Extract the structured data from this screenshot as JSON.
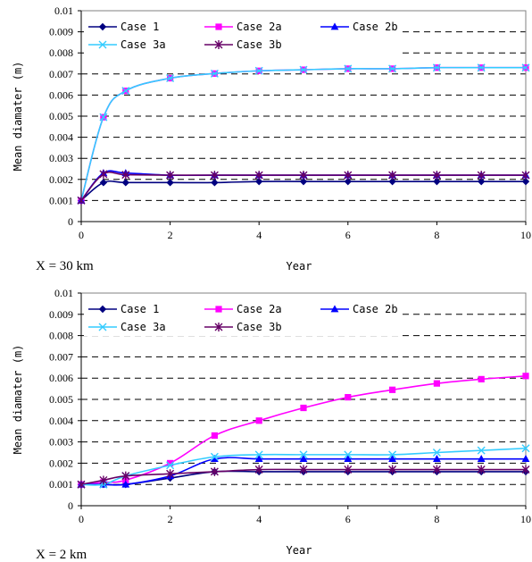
{
  "chart_data": [
    {
      "type": "line",
      "panel_label": "X = 30 km",
      "xlabel": "Year",
      "ylabel": "Mean diamater (m)",
      "xlim": [
        0,
        10
      ],
      "ylim": [
        0,
        0.01
      ],
      "xticks": [
        "0",
        "2",
        "4",
        "6",
        "8",
        "10"
      ],
      "yticks": [
        "0",
        "0.001",
        "0.002",
        "0.003",
        "0.004",
        "0.005",
        "0.006",
        "0.007",
        "0.008",
        "0.009",
        "0.01"
      ],
      "grid": "horizontal dashed",
      "legend_position": "top-left",
      "x": [
        0,
        0.5,
        1,
        2,
        3,
        4,
        5,
        6,
        7,
        8,
        9,
        10
      ],
      "series": [
        {
          "name": "Case 1",
          "color": "#000080",
          "marker": "diamond",
          "values": [
            0.001,
            0.00185,
            0.00185,
            0.00185,
            0.00185,
            0.0019,
            0.0019,
            0.0019,
            0.0019,
            0.0019,
            0.0019,
            0.0019
          ]
        },
        {
          "name": "Case 2a",
          "color": "#ff00ff",
          "marker": "square",
          "values": [
            0.001,
            0.00495,
            0.0062,
            0.0068,
            0.00702,
            0.00715,
            0.0072,
            0.00725,
            0.00725,
            0.0073,
            0.0073,
            0.0073
          ]
        },
        {
          "name": "Case 2b",
          "color": "#0000ff",
          "marker": "triangle",
          "values": [
            0.001,
            0.0023,
            0.0023,
            0.0022,
            0.0022,
            0.0022,
            0.0022,
            0.0022,
            0.0022,
            0.0022,
            0.0022,
            0.0022
          ]
        },
        {
          "name": "Case 3a",
          "color": "#33ccff",
          "marker": "x",
          "values": [
            0.001,
            0.00495,
            0.0062,
            0.0068,
            0.00702,
            0.00715,
            0.0072,
            0.00725,
            0.00725,
            0.0073,
            0.0073,
            0.0073
          ]
        },
        {
          "name": "Case 3b",
          "color": "#660066",
          "marker": "star",
          "values": [
            0.001,
            0.00225,
            0.00222,
            0.0022,
            0.0022,
            0.0022,
            0.0022,
            0.0022,
            0.0022,
            0.0022,
            0.0022,
            0.0022
          ]
        }
      ]
    },
    {
      "type": "line",
      "panel_label": "X = 2 km",
      "xlabel": "Year",
      "ylabel": "Mean diamater (m)",
      "xlim": [
        0,
        10
      ],
      "ylim": [
        0,
        0.01
      ],
      "xticks": [
        "0",
        "2",
        "4",
        "6",
        "8",
        "10"
      ],
      "yticks": [
        "0",
        "0.001",
        "0.002",
        "0.003",
        "0.004",
        "0.005",
        "0.006",
        "0.007",
        "0.008",
        "0.009",
        "0.01"
      ],
      "grid": "horizontal dashed",
      "legend_position": "top-left",
      "x": [
        0,
        0.5,
        1,
        2,
        3,
        4,
        5,
        6,
        7,
        8,
        9,
        10
      ],
      "series": [
        {
          "name": "Case 1",
          "color": "#000080",
          "marker": "diamond",
          "values": [
            0.001,
            0.001,
            0.001,
            0.0013,
            0.0016,
            0.0016,
            0.0016,
            0.0016,
            0.0016,
            0.0016,
            0.0016,
            0.0016
          ]
        },
        {
          "name": "Case 2a",
          "color": "#ff00ff",
          "marker": "square",
          "values": [
            0.001,
            0.0011,
            0.0012,
            0.002,
            0.0033,
            0.004,
            0.0046,
            0.0051,
            0.00545,
            0.00575,
            0.00595,
            0.0061
          ]
        },
        {
          "name": "Case 2b",
          "color": "#0000ff",
          "marker": "triangle",
          "values": [
            0.001,
            0.001,
            0.001,
            0.0014,
            0.0022,
            0.0022,
            0.0022,
            0.0022,
            0.0022,
            0.0022,
            0.0022,
            0.0022
          ]
        },
        {
          "name": "Case 3a",
          "color": "#33ccff",
          "marker": "x",
          "values": [
            0.001,
            0.001,
            0.0014,
            0.0019,
            0.0023,
            0.0024,
            0.0024,
            0.0024,
            0.0024,
            0.0025,
            0.0026,
            0.0027
          ]
        },
        {
          "name": "Case 3b",
          "color": "#660066",
          "marker": "star",
          "values": [
            0.001,
            0.0012,
            0.0014,
            0.0015,
            0.0016,
            0.0017,
            0.0017,
            0.0017,
            0.0017,
            0.0017,
            0.0017,
            0.0017
          ]
        }
      ]
    }
  ]
}
